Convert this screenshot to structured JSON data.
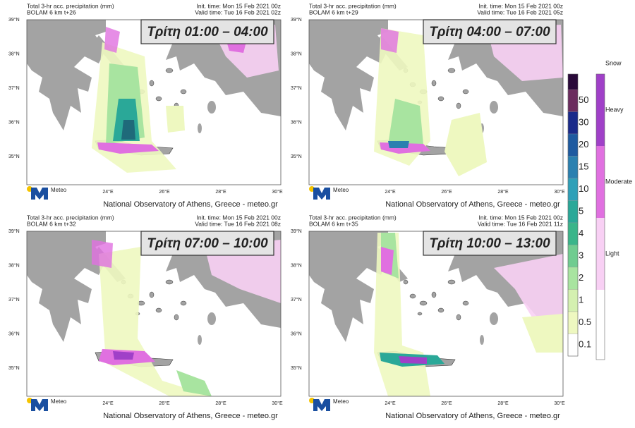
{
  "panels": [
    {
      "title": "Total 3-hr acc. precipitation (mm)",
      "model": "BOLAM 6 km t+26",
      "init_time": "Init. time: Mon 15 Feb 2021 00z",
      "valid_time": "Valid time: Tue 16 Feb 2021 02z",
      "overlay": "Τρίτη 01:00 – 04:00"
    },
    {
      "title": "Total 3-hr acc. precipitation (mm)",
      "model": "BOLAM 6 km t+29",
      "init_time": "Init. time: Mon 15 Feb 2021 00z",
      "valid_time": "Valid time: Tue 16 Feb 2021 05z",
      "overlay": "Τρίτη 04:00 – 07:00"
    },
    {
      "title": "Total 3-hr acc. precipitation (mm)",
      "model": "BOLAM 6 km t+32",
      "init_time": "Init. time: Mon 15 Feb 2021 00z",
      "valid_time": "Valid time: Tue 16 Feb 2021 08z",
      "overlay": "Τρίτη 07:00 – 10:00"
    },
    {
      "title": "Total 3-hr acc. precipitation (mm)",
      "model": "BOLAM 6 km t+35",
      "init_time": "Init. time: Mon 15 Feb 2021 00z",
      "valid_time": "Valid time: Tue 16 Feb 2021 11z",
      "overlay": "Τρίτη 10:00 – 13:00"
    }
  ],
  "lat_labels": [
    "39°N",
    "38°N",
    "37°N",
    "36°N",
    "35°N"
  ],
  "lon_labels": [
    "24°E",
    "26°E",
    "28°E",
    "30°E"
  ],
  "logo": "Meteo",
  "footer": "National Observatory of Athens, Greece - meteo.gr",
  "legend": {
    "precip": [
      {
        "label": "50",
        "color": "#6b2c5e"
      },
      {
        "label": "30",
        "color": "#1a2a8a"
      },
      {
        "label": "20",
        "color": "#1e5aa0"
      },
      {
        "label": "15",
        "color": "#2a80b0"
      },
      {
        "label": "10",
        "color": "#2fa0b8"
      },
      {
        "label": "5",
        "color": "#2aa898"
      },
      {
        "label": "4",
        "color": "#3ab58a"
      },
      {
        "label": "3",
        "color": "#70cc90"
      },
      {
        "label": "2",
        "color": "#a8e4a0"
      },
      {
        "label": "1",
        "color": "#d4f0b0"
      },
      {
        "label": "0.5",
        "color": "#eef8c0"
      },
      {
        "label": "0.1",
        "color": "#ffffff"
      }
    ],
    "snow_title": "Snow",
    "snow": [
      {
        "label": "Heavy",
        "color": "#a040c8"
      },
      {
        "label": "Moderate",
        "color": "#e070e0"
      },
      {
        "label": "Light",
        "color": "#f8d0f4"
      }
    ]
  }
}
